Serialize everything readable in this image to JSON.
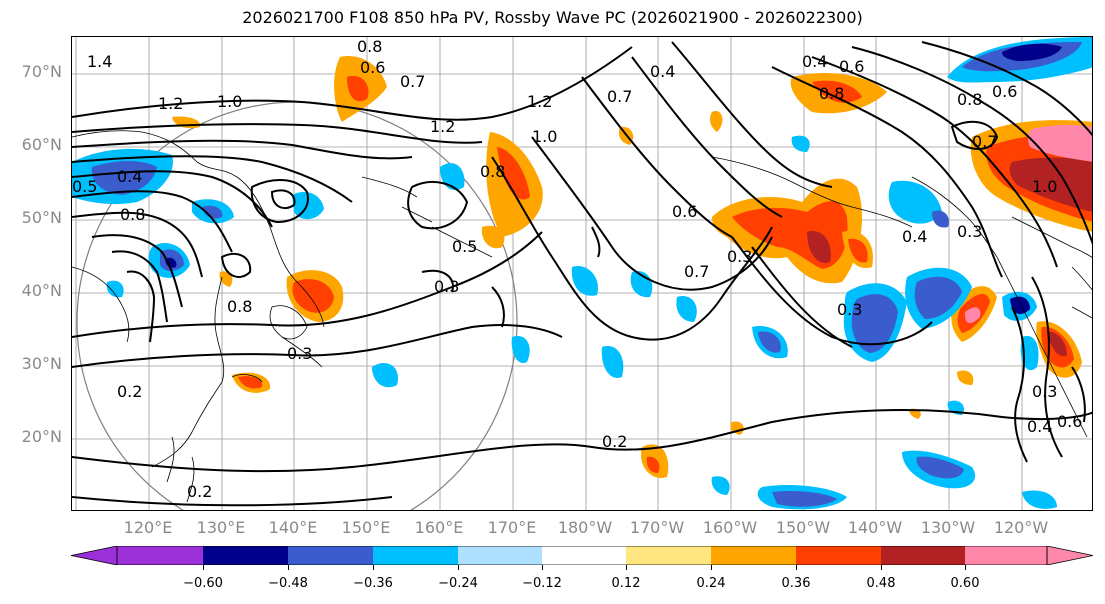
{
  "title": "2026021700 F108 850 hPa PV, Rossby Wave PC (2026021900 - 2026022300)",
  "lat_labels": [
    "70°N",
    "60°N",
    "50°N",
    "40°N",
    "30°N",
    "20°N"
  ],
  "lon_labels": [
    "120°E",
    "130°E",
    "140°E",
    "150°E",
    "160°E",
    "170°E",
    "180°W",
    "170°W",
    "160°W",
    "150°W",
    "140°W",
    "130°W",
    "120°W"
  ],
  "contour_labels": [
    "0.8",
    "0.7",
    "0.6",
    "1.4",
    "1.2",
    "1.0",
    "1.2",
    "1.2",
    "1.0",
    "0.8",
    "0.8",
    "0.5",
    "0.4",
    "0.8",
    "0.5",
    "0.3",
    "0.3",
    "0.3",
    "0.2",
    "0.2",
    "0.2",
    "0.6",
    "0.7",
    "0.3",
    "0.4",
    "0.3",
    "0.8",
    "0.6",
    "0.4",
    "1.0",
    "0.7",
    "0.4",
    "0.6",
    "0.3",
    "0.8",
    "0.7",
    "0.6",
    "0.4"
  ],
  "colorbar": {
    "ticks": [
      "−0.60",
      "−0.48",
      "−0.36",
      "−0.24",
      "−0.12",
      "0.12",
      "0.24",
      "0.36",
      "0.48",
      "0.60"
    ],
    "colors": [
      "#9b30d9",
      "#00008b",
      "#3a5ccc",
      "#00bfff",
      "#b0e0ff",
      "#ffffff",
      "#ffe680",
      "#ffa500",
      "#ff4000",
      "#b22222",
      "#ff88aa"
    ]
  },
  "colors": {
    "orange": "#ffa500",
    "red": "#ff4000",
    "darkred": "#b22222",
    "pink": "#ff88aa",
    "yellow": "#ffe680",
    "cyan": "#00bfff",
    "blue": "#3a5ccc",
    "navy": "#00008b"
  }
}
